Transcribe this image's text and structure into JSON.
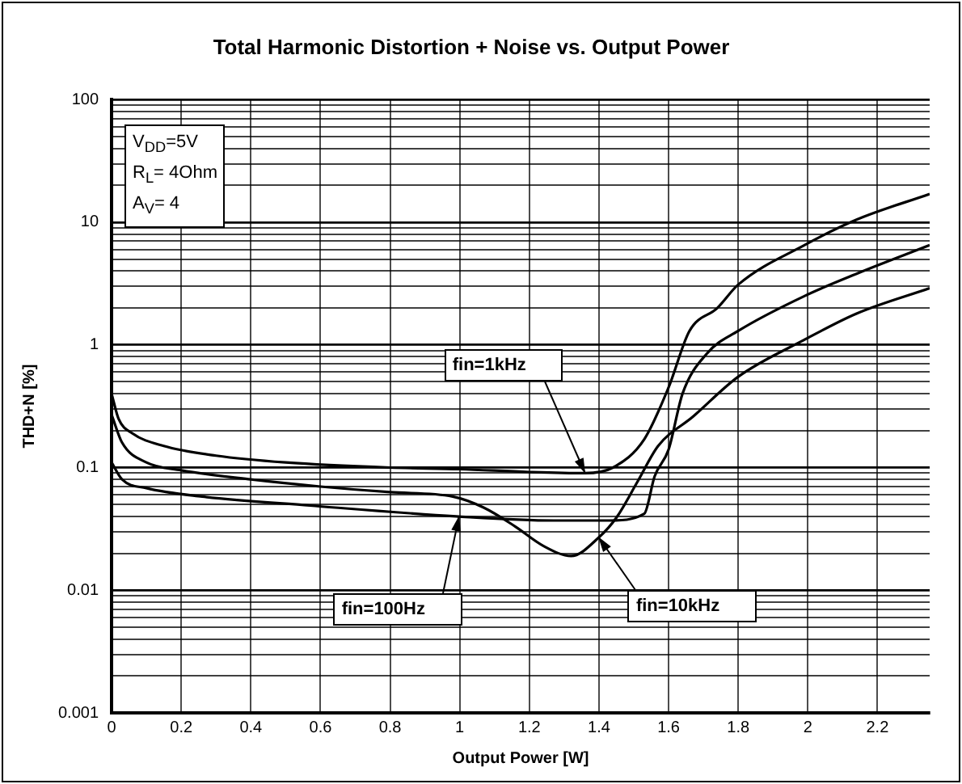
{
  "chart_data": {
    "type": "line",
    "title": "Total Harmonic Distortion + Noise vs. Output Power",
    "xlabel": "Output Power [W]",
    "ylabel": "THD+N [%]",
    "log": "y",
    "grid": true,
    "legend": false,
    "marker": "none",
    "xlim": [
      0,
      2.35
    ],
    "xticks": [
      0,
      0.2,
      0.4,
      0.6,
      0.8,
      1,
      1.2,
      1.4,
      1.6,
      1.8,
      2,
      2.2
    ],
    "ylim": [
      0.001,
      100
    ],
    "yticks": [
      {
        "value": 0.001,
        "label": "0.001"
      },
      {
        "value": 0.002,
        "label": null
      },
      {
        "value": 0.003,
        "label": null
      },
      {
        "value": 0.004,
        "label": null
      },
      {
        "value": 0.005,
        "label": null
      },
      {
        "value": 0.006,
        "label": null
      },
      {
        "value": 0.007,
        "label": null
      },
      {
        "value": 0.008,
        "label": null
      },
      {
        "value": 0.009,
        "label": null
      },
      {
        "value": 0.01,
        "label": "0.01"
      },
      {
        "value": 0.02,
        "label": null
      },
      {
        "value": 0.03,
        "label": null
      },
      {
        "value": 0.04,
        "label": null
      },
      {
        "value": 0.05,
        "label": null
      },
      {
        "value": 0.06,
        "label": null
      },
      {
        "value": 0.07,
        "label": null
      },
      {
        "value": 0.08,
        "label": null
      },
      {
        "value": 0.09,
        "label": null
      },
      {
        "value": 0.1,
        "label": "0.1"
      },
      {
        "value": 0.2,
        "label": null
      },
      {
        "value": 0.3,
        "label": null
      },
      {
        "value": 0.4,
        "label": null
      },
      {
        "value": 0.5,
        "label": null
      },
      {
        "value": 0.6,
        "label": null
      },
      {
        "value": 0.7,
        "label": null
      },
      {
        "value": 0.8,
        "label": null
      },
      {
        "value": 0.9,
        "label": null
      },
      {
        "value": 1,
        "label": "1"
      },
      {
        "value": 2,
        "label": null
      },
      {
        "value": 3,
        "label": null
      },
      {
        "value": 4,
        "label": null
      },
      {
        "value": 5,
        "label": null
      },
      {
        "value": 6,
        "label": null
      },
      {
        "value": 7,
        "label": null
      },
      {
        "value": 8,
        "label": null
      },
      {
        "value": 9,
        "label": null
      },
      {
        "value": 10,
        "label": "10"
      },
      {
        "value": 20,
        "label": null
      },
      {
        "value": 30,
        "label": null
      },
      {
        "value": 40,
        "label": null
      },
      {
        "value": 50,
        "label": null
      },
      {
        "value": 60,
        "label": null
      },
      {
        "value": 70,
        "label": null
      },
      {
        "value": 80,
        "label": null
      },
      {
        "value": 90,
        "label": null
      },
      {
        "value": 100,
        "label": "100"
      }
    ],
    "series": [
      {
        "color": "#000000",
        "x": [
          0,
          0.02,
          0.06,
          0.15,
          0.3,
          0.5,
          0.8,
          1.0,
          1.2,
          1.36,
          1.44,
          1.53,
          1.6,
          1.66,
          1.74,
          1.8,
          1.99,
          2.14,
          2.35
        ],
        "values": [
          0.4,
          0.25,
          0.19,
          0.15,
          0.125,
          0.11,
          0.1,
          0.097,
          0.092,
          0.09,
          0.1,
          0.17,
          0.45,
          1.3,
          2.0,
          3.1,
          6.5,
          10.5,
          17
        ]
      },
      {
        "color": "#000000",
        "x": [
          0,
          0.03,
          0.1,
          0.26,
          0.57,
          0.99,
          1.27,
          1.43,
          1.53,
          1.56,
          1.6,
          1.64,
          1.71,
          1.8,
          1.99,
          2.14,
          2.35
        ],
        "values": [
          0.11,
          0.08,
          0.068,
          0.058,
          0.049,
          0.04,
          0.037,
          0.037,
          0.042,
          0.085,
          0.14,
          0.4,
          0.85,
          1.3,
          2.5,
          3.8,
          6.5
        ]
      },
      {
        "color": "#000000",
        "x": [
          0,
          0.03,
          0.1,
          0.2,
          0.4,
          0.6,
          0.8,
          0.98,
          1.07,
          1.16,
          1.24,
          1.32,
          1.4,
          1.45,
          1.51,
          1.57,
          1.67,
          1.8,
          1.99,
          2.14,
          2.35
        ],
        "values": [
          0.27,
          0.16,
          0.11,
          0.095,
          0.08,
          0.07,
          0.063,
          0.058,
          0.047,
          0.033,
          0.023,
          0.019,
          0.027,
          0.039,
          0.076,
          0.15,
          0.26,
          0.55,
          1.1,
          1.8,
          2.9
        ]
      }
    ],
    "annotations": [
      "V$_{DD}$=5V",
      "R$_{L}$= 4Ohm",
      "A$_{V}$= 4",
      {
        "text": "fin=1kHz",
        "x": 1.36,
        "y": 0.09
      },
      {
        "text": "fin=100Hz",
        "x": 1.0,
        "y": 0.04
      },
      {
        "text": "fin=10kHz",
        "x": 1.4,
        "y": 0.027
      }
    ]
  }
}
